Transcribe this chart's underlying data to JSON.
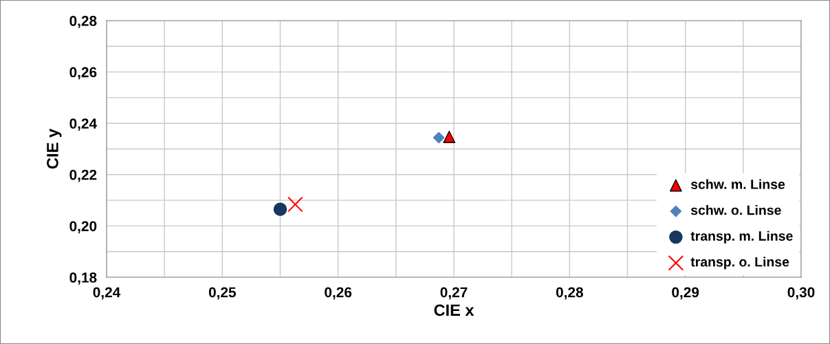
{
  "chart_data": {
    "type": "scatter",
    "xlabel": "CIE x",
    "ylabel": "CIE y",
    "xlim": [
      0.24,
      0.3
    ],
    "xticks": [
      {
        "value": 0.24,
        "label": "0,24"
      },
      {
        "value": 0.245,
        "label": null
      },
      {
        "value": 0.25,
        "label": "0,25"
      },
      {
        "value": 0.255,
        "label": null
      },
      {
        "value": 0.26,
        "label": "0,26"
      },
      {
        "value": 0.265,
        "label": null
      },
      {
        "value": 0.27,
        "label": "0,27"
      },
      {
        "value": 0.275,
        "label": null
      },
      {
        "value": 0.28,
        "label": "0,28"
      },
      {
        "value": 0.285,
        "label": null
      },
      {
        "value": 0.29,
        "label": "0,29"
      },
      {
        "value": 0.295,
        "label": null
      },
      {
        "value": 0.3,
        "label": "0,30"
      }
    ],
    "ylim": [
      0.18,
      0.28
    ],
    "yticks": [
      {
        "value": 0.18,
        "label": "0,18"
      },
      {
        "value": 0.19,
        "label": null
      },
      {
        "value": 0.2,
        "label": "0,20"
      },
      {
        "value": 0.21,
        "label": null
      },
      {
        "value": 0.22,
        "label": "0,22"
      },
      {
        "value": 0.23,
        "label": null
      },
      {
        "value": 0.24,
        "label": "0,24"
      },
      {
        "value": 0.25,
        "label": null
      },
      {
        "value": 0.26,
        "label": "0,26"
      },
      {
        "value": 0.27,
        "label": null
      },
      {
        "value": 0.28,
        "label": "0,28"
      }
    ],
    "grid": true,
    "legend": "bottom right",
    "series": [
      {
        "name": "schw. m. Linse",
        "color": "#ff0000",
        "marker": "triangle",
        "x": [
          0.2696
        ],
        "values": [
          0.2347
        ]
      },
      {
        "name": "schw. o. Linse",
        "color": "#4f81bd",
        "marker": "diamond",
        "x": [
          0.2687
        ],
        "values": [
          0.2344
        ]
      },
      {
        "name": "transp. m. Linse",
        "color": "#17375e",
        "marker": "circle",
        "x": [
          0.255
        ],
        "values": [
          0.2065
        ]
      },
      {
        "name": "transp. o. Linse",
        "color": "#ff0000",
        "marker": "cross",
        "x": [
          0.2563
        ],
        "values": [
          0.2084
        ]
      }
    ]
  }
}
